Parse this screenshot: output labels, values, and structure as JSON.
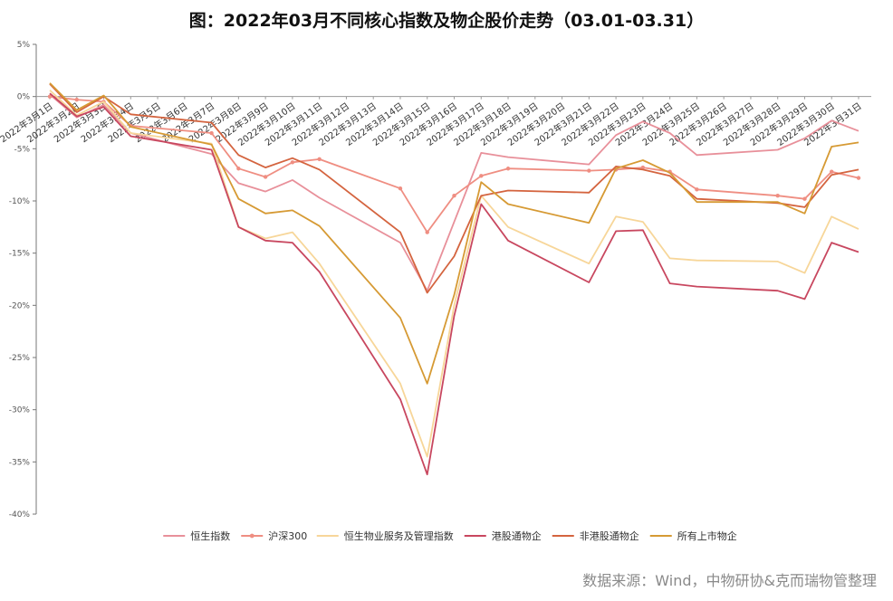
{
  "title": "图：2022年03月不同核心指数及物企股价走势（03.01-03.31）",
  "source": "数据来源：Wind，中物研协&克而瑞物管整理",
  "chart_data": {
    "type": "line",
    "title": "图：2022年03月不同核心指数及物企股价走势（03.01-03.31）",
    "x": [
      "2022年3月1日",
      "2022年3月2日",
      "2022年3月3日",
      "2022年3月4日",
      "2022年3月7日",
      "2022年3月8日",
      "2022年3月9日",
      "2022年3月10日",
      "2022年3月11日",
      "2022年3月14日",
      "2022年3月15日",
      "2022年3月16日",
      "2022年3月17日",
      "2022年3月18日",
      "2022年3月21日",
      "2022年3月22日",
      "2022年3月23日",
      "2022年3月24日",
      "2022年3月25日",
      "2022年3月28日",
      "2022年3月29日",
      "2022年3月30日",
      "2022年3月31日"
    ],
    "x_labels": [
      "2022年3月1日",
      "2022年3月2日",
      "2022年3月3日",
      "2022年3月4日",
      "2022年3月5日",
      "2022年3月6日",
      "2022年3月7日",
      "2022年3月8日",
      "2022年3月9日",
      "2022年3月10日",
      "2022年3月11日",
      "2022年3月12日",
      "2022年3月13日",
      "2022年3月14日",
      "2022年3月15日",
      "2022年3月16日",
      "2022年3月17日",
      "2022年3月18日",
      "2022年3月19日",
      "2022年3月20日",
      "2022年3月21日",
      "2022年3月22日",
      "2022年3月23日",
      "2022年3月24日",
      "2022年3月25日",
      "2022年3月26日",
      "2022年3月27日",
      "2022年3月28日",
      "2022年3月29日",
      "2022年3月30日",
      "2022年3月31日"
    ],
    "ylim": [
      -40,
      5
    ],
    "yticks": [
      5,
      0,
      -5,
      -10,
      -15,
      -20,
      -25,
      -30,
      -35,
      -40
    ],
    "ytick_labels": [
      "5%",
      "0%",
      "-5%",
      "-10%",
      "-15%",
      "-20%",
      "-25%",
      "-30%",
      "-35%",
      "-40%"
    ],
    "grid": false,
    "legend_position": "bottom",
    "series": [
      {
        "name": "恒生指数",
        "color": "#e8909a",
        "marker": false,
        "values": [
          0.2,
          -2.0,
          -0.8,
          -3.5,
          -5.5,
          -8.3,
          -9.1,
          -8.0,
          -9.7,
          -14.0,
          -18.6,
          -12.0,
          -5.4,
          -5.8,
          -6.5,
          -3.7,
          -2.4,
          -3.5,
          -5.6,
          -5.1,
          -4.0,
          -2.3,
          -3.3
        ]
      },
      {
        "name": "沪深300",
        "color": "#ef8e82",
        "marker": true,
        "values": [
          0.0,
          -0.3,
          -0.5,
          -2.8,
          -3.5,
          -6.9,
          -7.7,
          -6.3,
          -6.0,
          -8.8,
          -13.0,
          -9.5,
          -7.6,
          -6.9,
          -7.1,
          -7.0,
          -6.8,
          -7.2,
          -8.9,
          -9.5,
          -9.8,
          -7.2,
          -7.8
        ]
      },
      {
        "name": "恒生物业服务及管理指数",
        "color": "#f7d699",
        "marker": false,
        "values": [
          0.6,
          -1.8,
          -0.5,
          -3.5,
          -4.5,
          -12.5,
          -13.6,
          -13.0,
          -16.0,
          -27.5,
          -34.5,
          -20.0,
          -9.5,
          -12.5,
          -16.0,
          -11.5,
          -12.0,
          -15.5,
          -15.7,
          -15.8,
          -16.9,
          -11.5,
          -12.7
        ]
      },
      {
        "name": "港股通物企",
        "color": "#c8475f",
        "marker": false,
        "values": [
          0.3,
          -1.9,
          -1.0,
          -3.8,
          -5.1,
          -12.5,
          -13.8,
          -14.0,
          -16.8,
          -29.0,
          -36.2,
          -21.0,
          -10.3,
          -13.8,
          -17.8,
          -12.9,
          -12.8,
          -17.9,
          -18.2,
          -18.6,
          -19.4,
          -14.0,
          -14.9
        ]
      },
      {
        "name": "非港股通物企",
        "color": "#d4643f",
        "marker": false,
        "values": [
          1.2,
          -1.5,
          0.0,
          -1.7,
          -2.5,
          -5.6,
          -6.8,
          -5.9,
          -7.0,
          -13.0,
          -18.8,
          -15.3,
          -9.5,
          -9.0,
          -9.2,
          -6.7,
          -7.0,
          -7.6,
          -9.8,
          -10.2,
          -10.6,
          -7.5,
          -7.0
        ]
      },
      {
        "name": "所有上市物企",
        "color": "#d69a34",
        "marker": false,
        "values": [
          1.3,
          -1.3,
          0.1,
          -2.9,
          -4.6,
          -9.8,
          -11.2,
          -10.9,
          -12.4,
          -21.2,
          -27.5,
          -19.0,
          -8.2,
          -10.3,
          -12.1,
          -6.9,
          -6.1,
          -7.3,
          -10.1,
          -10.1,
          -11.2,
          -4.8,
          -4.4
        ]
      }
    ]
  }
}
